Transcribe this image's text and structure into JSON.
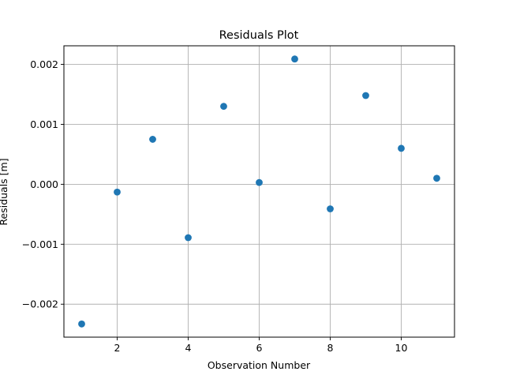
{
  "chart_data": {
    "type": "scatter",
    "title": "Residuals Plot",
    "xlabel": "Observation Number",
    "ylabel": "Residuals [m]",
    "x": [
      1,
      2,
      3,
      4,
      5,
      6,
      7,
      8,
      9,
      10,
      11
    ],
    "y": [
      -0.00233,
      -0.00013,
      0.00075,
      -0.00089,
      0.0013,
      3e-05,
      0.00209,
      -0.00041,
      0.00148,
      0.0006,
      0.0001
    ],
    "xlim": [
      0.5,
      11.5
    ],
    "ylim": [
      -0.00255,
      0.00231
    ],
    "xticks": [
      2,
      4,
      6,
      8,
      10
    ],
    "xtick_labels": [
      "2",
      "4",
      "6",
      "8",
      "10"
    ],
    "yticks": [
      -0.002,
      -0.001,
      0.0,
      0.001,
      0.002
    ],
    "ytick_labels": [
      "−0.002",
      "−0.001",
      "0.000",
      "0.001",
      "0.002"
    ],
    "grid": true,
    "marker_color": "#1f77b4"
  }
}
